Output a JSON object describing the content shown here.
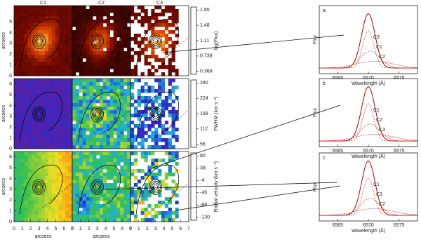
{
  "columns": [
    "C1",
    "C2",
    "C3"
  ],
  "map_axis": {
    "ylabel": "arcsecs",
    "xlabel": "arcsecs",
    "yticks_top": [
      0,
      1,
      2,
      3,
      4,
      5
    ],
    "yticks": [
      0,
      1,
      2,
      3,
      4,
      5,
      6
    ],
    "xticks": [
      0,
      1,
      2,
      3,
      4,
      5,
      6,
      7
    ]
  },
  "colorbars": [
    {
      "label": "log(Flux)",
      "ticks": [
        0.369,
        0.738,
        1.11,
        1.48,
        1.85
      ]
    },
    {
      "label": "FWHM (km s⁻¹)",
      "ticks": [
        56,
        112,
        168,
        224,
        280
      ]
    },
    {
      "label": "Radial velocity (km s⁻¹)",
      "ticks": [
        -130,
        -88,
        -46,
        -4,
        38,
        80
      ]
    }
  ],
  "spectra": {
    "ylabel": "Flux",
    "xlabel": "Wavelength (Å)",
    "xticks": [
      6565,
      6570,
      6575
    ],
    "panels": [
      {
        "label": "a",
        "components": [
          "C3",
          "C1",
          "C2"
        ]
      },
      {
        "label": "b",
        "components": [
          "C1",
          "C2",
          "C3"
        ]
      },
      {
        "label": "c",
        "components": [
          "C1",
          "C3",
          "C2"
        ]
      }
    ]
  }
}
